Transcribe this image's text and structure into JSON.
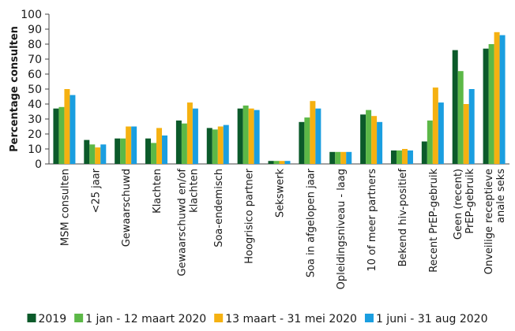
{
  "chart_data": {
    "type": "bar",
    "y_label": "Percentage consulten",
    "categories": [
      "MSM consulten",
      "<25 jaar",
      "Gewaarschuwd",
      "Klachten",
      "Gewaarschuwd en/of\nklachten",
      "Soa-endemisch",
      "Hoogrisico partner",
      "Sekswerk",
      "Soa in afgelopen jaar",
      "Opleidingsniveau - laag",
      "10 of meer partners",
      "Bekend hiv-positief",
      "Recent PrEP-gebruik",
      "Geen (recent)\nPrEP-gebruik",
      "Onveilige receptieve\nanale seks"
    ],
    "series": [
      {
        "name": "2019",
        "color": "#0b5a2a",
        "values": [
          37,
          16,
          17,
          17,
          29,
          24,
          37,
          2,
          28,
          8,
          33,
          9,
          15,
          76,
          77
        ]
      },
      {
        "name": "1 jan - 12 maart 2020",
        "color": "#5cb847",
        "values": [
          38,
          13,
          17,
          14,
          27,
          23,
          39,
          2,
          31,
          8,
          36,
          9,
          29,
          62,
          80
        ]
      },
      {
        "name": "13 maart - 31 mei 2020",
        "color": "#f5b111",
        "values": [
          50,
          11,
          25,
          24,
          41,
          25,
          37,
          2,
          42,
          8,
          32,
          10,
          51,
          40,
          88
        ]
      },
      {
        "name": "1 juni - 31 aug 2020",
        "color": "#1a9ee0",
        "values": [
          46,
          13,
          25,
          19,
          37,
          26,
          36,
          2,
          37,
          8,
          28,
          9,
          41,
          50,
          86
        ]
      }
    ],
    "ylim": [
      0,
      100
    ],
    "yticks": [
      0,
      10,
      20,
      30,
      40,
      50,
      60,
      70,
      80,
      90,
      100
    ],
    "grid": false,
    "legend": "bottom"
  }
}
